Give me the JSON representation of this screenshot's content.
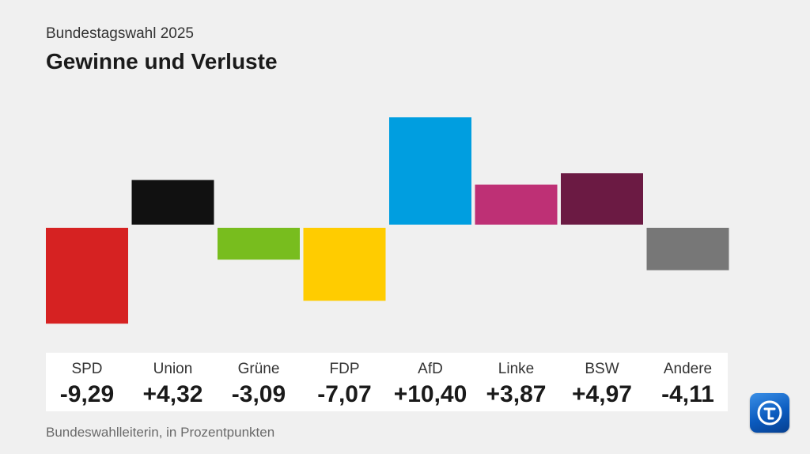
{
  "header": {
    "subtitle": "Bundestagswahl 2025",
    "title": "Gewinne und Verluste"
  },
  "footer": {
    "source": "Bundeswahlleiterin, in Prozentpunkten"
  },
  "logo_icon": "ard-tagesschau-logo-icon",
  "chart_data": {
    "type": "bar",
    "title": "Gewinne und Verluste",
    "categories": [
      "SPD",
      "Union",
      "Grüne",
      "FDP",
      "AfD",
      "Linke",
      "BSW",
      "Andere"
    ],
    "values": [
      -9.29,
      4.32,
      -3.09,
      -7.07,
      10.4,
      3.87,
      4.97,
      -4.11
    ],
    "value_labels": [
      "-9,29",
      "+4,32",
      "-3,09",
      "-7,07",
      "+10,40",
      "+3,87",
      "+4,97",
      "-4,11"
    ],
    "colors": [
      "#d62222",
      "#111111",
      "#78bd1e",
      "#ffcc00",
      "#009ee0",
      "#be3075",
      "#6b1a43",
      "#777777"
    ],
    "xlabel": "",
    "ylabel": "",
    "grid": false,
    "legend": "none"
  }
}
